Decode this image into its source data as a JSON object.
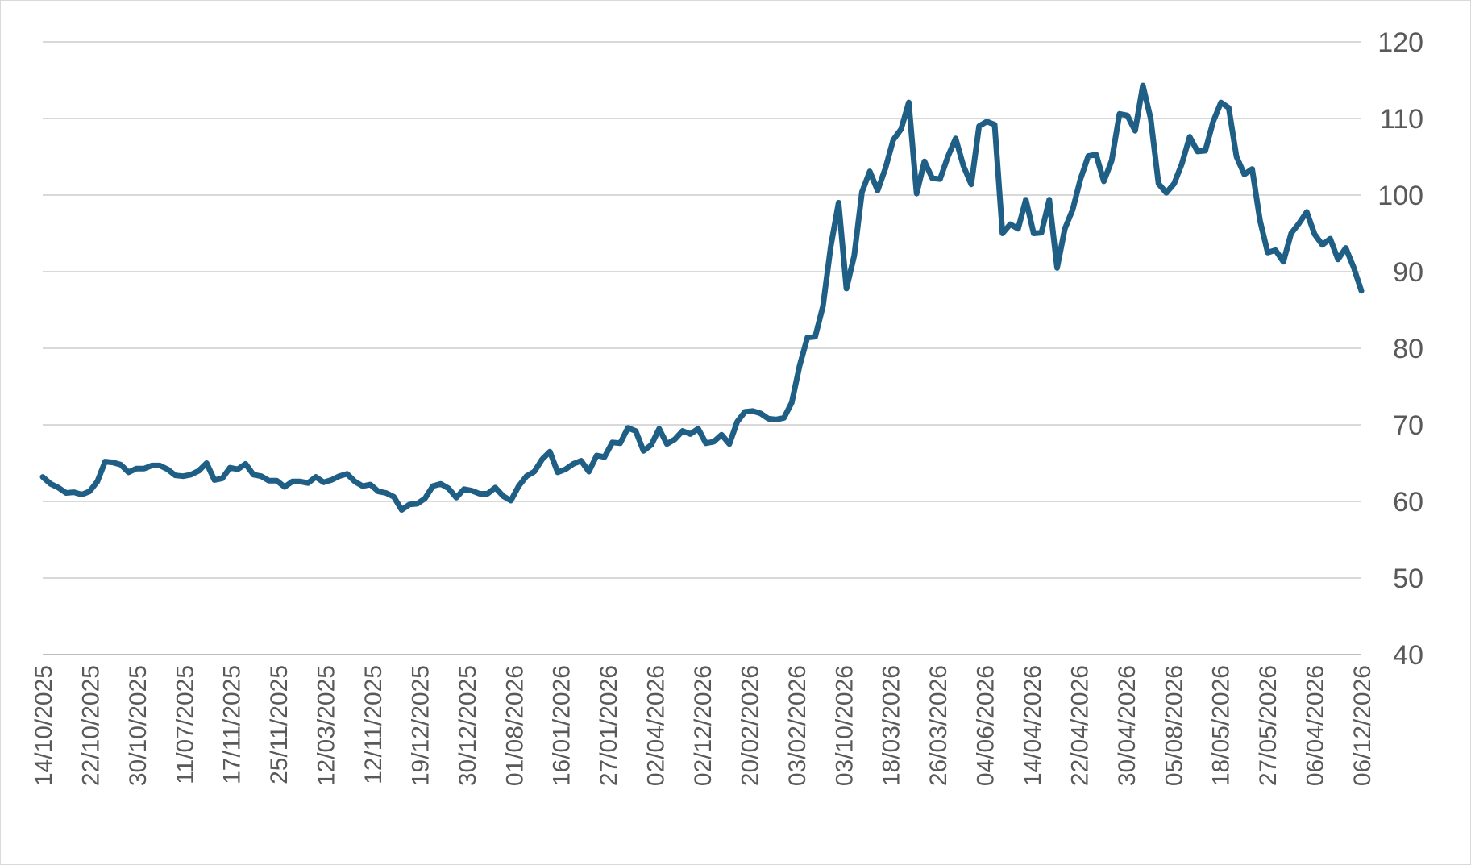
{
  "chart_data": {
    "type": "line",
    "title": "",
    "xlabel": "",
    "ylabel": "",
    "ylim": [
      40,
      120
    ],
    "yticks": [
      "40",
      "50",
      "60",
      "70",
      "80",
      "90",
      "100",
      "110",
      "120"
    ],
    "y_axis_side": "right",
    "grid": "horizontal",
    "legend": "none",
    "series_color": "#1f5f85",
    "grid_color": "#d9d9d9",
    "axis_color": "#bfbfbf",
    "label_color": "#595959",
    "x_tick_labels": [
      "14/10/2025",
      "22/10/2025",
      "30/10/2025",
      "11/07/2025",
      "17/11/2025",
      "25/11/2025",
      "12/03/2025",
      "12/11/2025",
      "19/12/2025",
      "30/12/2025",
      "01/08/2026",
      "16/01/2026",
      "27/01/2026",
      "02/04/2026",
      "02/12/2026",
      "20/02/2026",
      "03/02/2026",
      "03/10/2026",
      "18/03/2026",
      "26/03/2026",
      "04/06/2026",
      "14/04/2026",
      "22/04/2026",
      "30/04/2026",
      "05/08/2026",
      "18/05/2026",
      "27/05/2026",
      "06/04/2026",
      "06/12/2026"
    ],
    "series": [
      {
        "values": [
          63.2,
          62.3,
          61.8,
          61.1,
          61.2,
          60.9,
          61.3,
          62.6,
          65.2,
          65.1,
          64.8,
          63.8,
          64.3,
          64.3,
          64.7,
          64.7,
          64.2,
          63.4,
          63.3,
          63.5,
          64.0,
          65.0,
          62.8,
          63.0,
          64.4,
          64.2,
          64.9,
          63.5,
          63.3,
          62.7,
          62.7,
          61.9,
          62.6,
          62.6,
          62.4,
          63.2,
          62.5,
          62.8,
          63.3,
          63.6,
          62.6,
          62.0,
          62.2,
          61.3,
          61.1,
          60.6,
          58.9,
          59.6,
          59.7,
          60.4,
          62.0,
          62.3,
          61.7,
          60.5,
          61.6,
          61.4,
          61.0,
          61.0,
          61.8,
          60.7,
          60.1,
          62.0,
          63.3,
          63.9,
          65.5,
          66.5,
          63.8,
          64.2,
          64.9,
          65.3,
          63.9,
          66.0,
          65.8,
          67.7,
          67.6,
          69.6,
          69.2,
          66.6,
          67.4,
          69.5,
          67.5,
          68.1,
          69.2,
          68.8,
          69.5,
          67.6,
          67.8,
          68.7,
          67.5,
          70.4,
          71.7,
          71.8,
          71.5,
          70.8,
          70.7,
          70.9,
          72.9,
          77.7,
          81.4,
          81.5,
          85.5,
          93.3,
          99.0,
          87.8,
          92.1,
          100.4,
          103.1,
          100.6,
          103.5,
          107.2,
          108.6,
          112.1,
          100.2,
          104.4,
          102.2,
          102.1,
          105.0,
          107.4,
          103.8,
          101.4,
          109.0,
          109.6,
          109.2,
          95.0,
          96.2,
          95.6,
          99.4,
          95.0,
          95.1,
          99.4,
          90.5,
          95.6,
          98.1,
          102.1,
          105.1,
          105.3,
          101.8,
          104.5,
          110.6,
          110.4,
          108.4,
          114.3,
          110.0,
          101.5,
          100.3,
          101.5,
          104.1,
          107.6,
          105.7,
          105.8,
          109.6,
          112.1,
          111.4,
          105.0,
          102.7,
          103.4,
          96.7,
          92.5,
          92.8,
          91.3,
          95.0,
          96.3,
          97.8,
          94.9,
          93.5,
          94.3,
          91.6,
          93.1,
          90.6,
          87.5
        ]
      }
    ]
  }
}
